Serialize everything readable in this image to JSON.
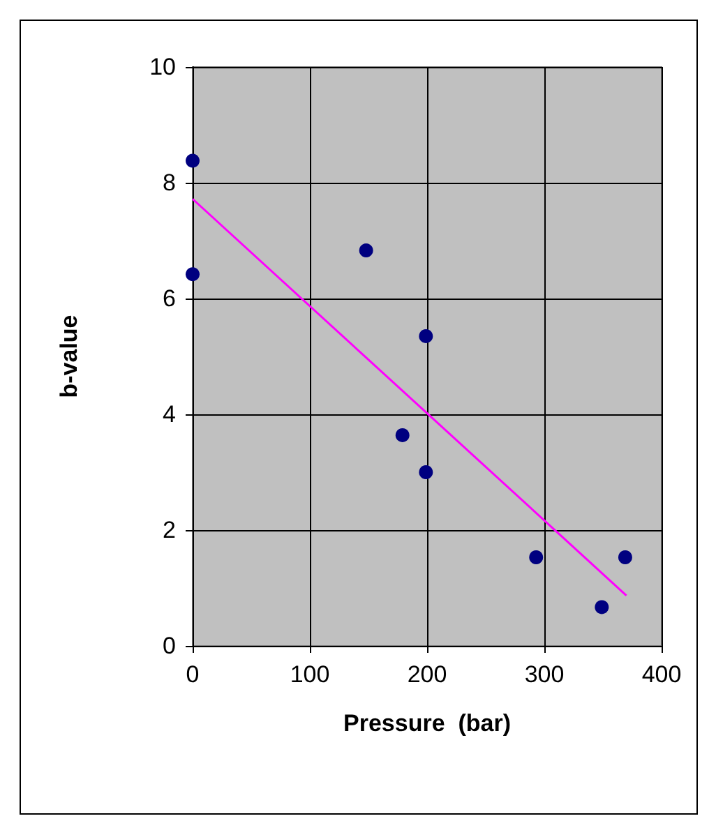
{
  "chart_data": {
    "type": "scatter",
    "xlabel": "Pressure  (bar)",
    "ylabel": "b-value",
    "xlim": [
      0,
      400
    ],
    "xticks": [
      0,
      100,
      200,
      300,
      400
    ],
    "ylim": [
      0,
      10
    ],
    "yticks": [
      0,
      2,
      4,
      6,
      8,
      10
    ],
    "grid": true,
    "marker": "circle",
    "series": [
      {
        "color": "#000080",
        "x": [
          0,
          0,
          148,
          199,
          179,
          199,
          293,
          349,
          369
        ],
        "values": [
          8.38,
          6.42,
          6.83,
          5.35,
          3.64,
          3.0,
          1.53,
          0.67,
          1.53
        ]
      },
      {
        "type": "line",
        "color": "#ff00ff",
        "marker": "none",
        "x": [
          0,
          370
        ],
        "values": [
          7.72,
          0.87
        ]
      }
    ]
  }
}
